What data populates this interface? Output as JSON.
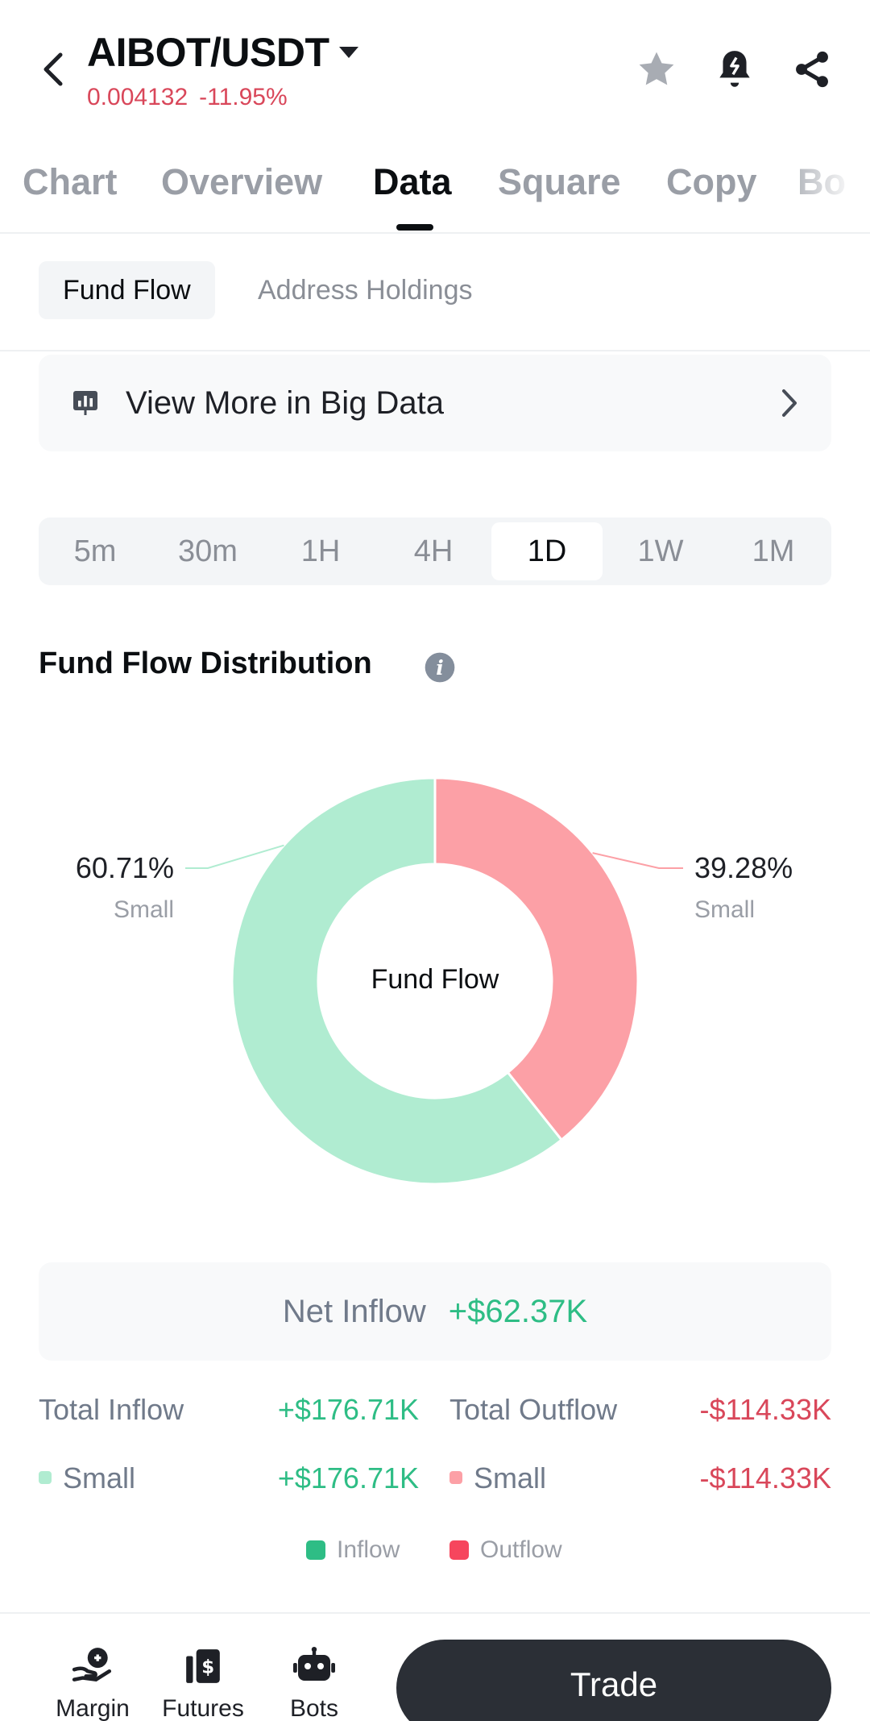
{
  "header": {
    "pair": "AIBOT/USDT",
    "price": "0.004132",
    "change": "-11.95%"
  },
  "tabs": [
    {
      "label": "Chart",
      "active": false
    },
    {
      "label": "Overview",
      "active": false
    },
    {
      "label": "Data",
      "active": true
    },
    {
      "label": "Square",
      "active": false
    },
    {
      "label": "Copy",
      "active": false
    },
    {
      "label": "Bo",
      "active": false
    }
  ],
  "subtabs": {
    "fund_flow": "Fund Flow",
    "address_holdings": "Address Holdings"
  },
  "big_data": {
    "label": "View More in Big Data"
  },
  "intervals": {
    "options": [
      "5m",
      "30m",
      "1H",
      "4H",
      "1D",
      "1W",
      "1M"
    ],
    "selected": "1D"
  },
  "distribution": {
    "title": "Fund Flow Distribution",
    "center_label": "Fund Flow",
    "inflow_pct": "60.71%",
    "inflow_label": "Small",
    "outflow_pct": "39.28%",
    "outflow_label": "Small",
    "colors": {
      "inflow": "#b0ecd1",
      "outflow": "#fca0a6"
    }
  },
  "chart_data": {
    "type": "pie",
    "categories": [
      "Small Inflow",
      "Small Outflow"
    ],
    "values": [
      60.71,
      39.28
    ]
  },
  "net": {
    "label": "Net Inflow",
    "value": "+$62.37K"
  },
  "totals": {
    "inflow_label": "Total Inflow",
    "inflow_value": "+$176.71K",
    "outflow_label": "Total Outflow",
    "outflow_value": "-$114.33K",
    "small_inflow_label": "Small",
    "small_inflow_value": "+$176.71K",
    "small_outflow_label": "Small",
    "small_outflow_value": "-$114.33K"
  },
  "legend": {
    "inflow": "Inflow",
    "outflow": "Outflow",
    "inflow_color": "#2ebd85",
    "outflow_color": "#f6465d"
  },
  "bottom_bar": {
    "margin": "Margin",
    "futures": "Futures",
    "bots": "Bots",
    "trade": "Trade"
  }
}
